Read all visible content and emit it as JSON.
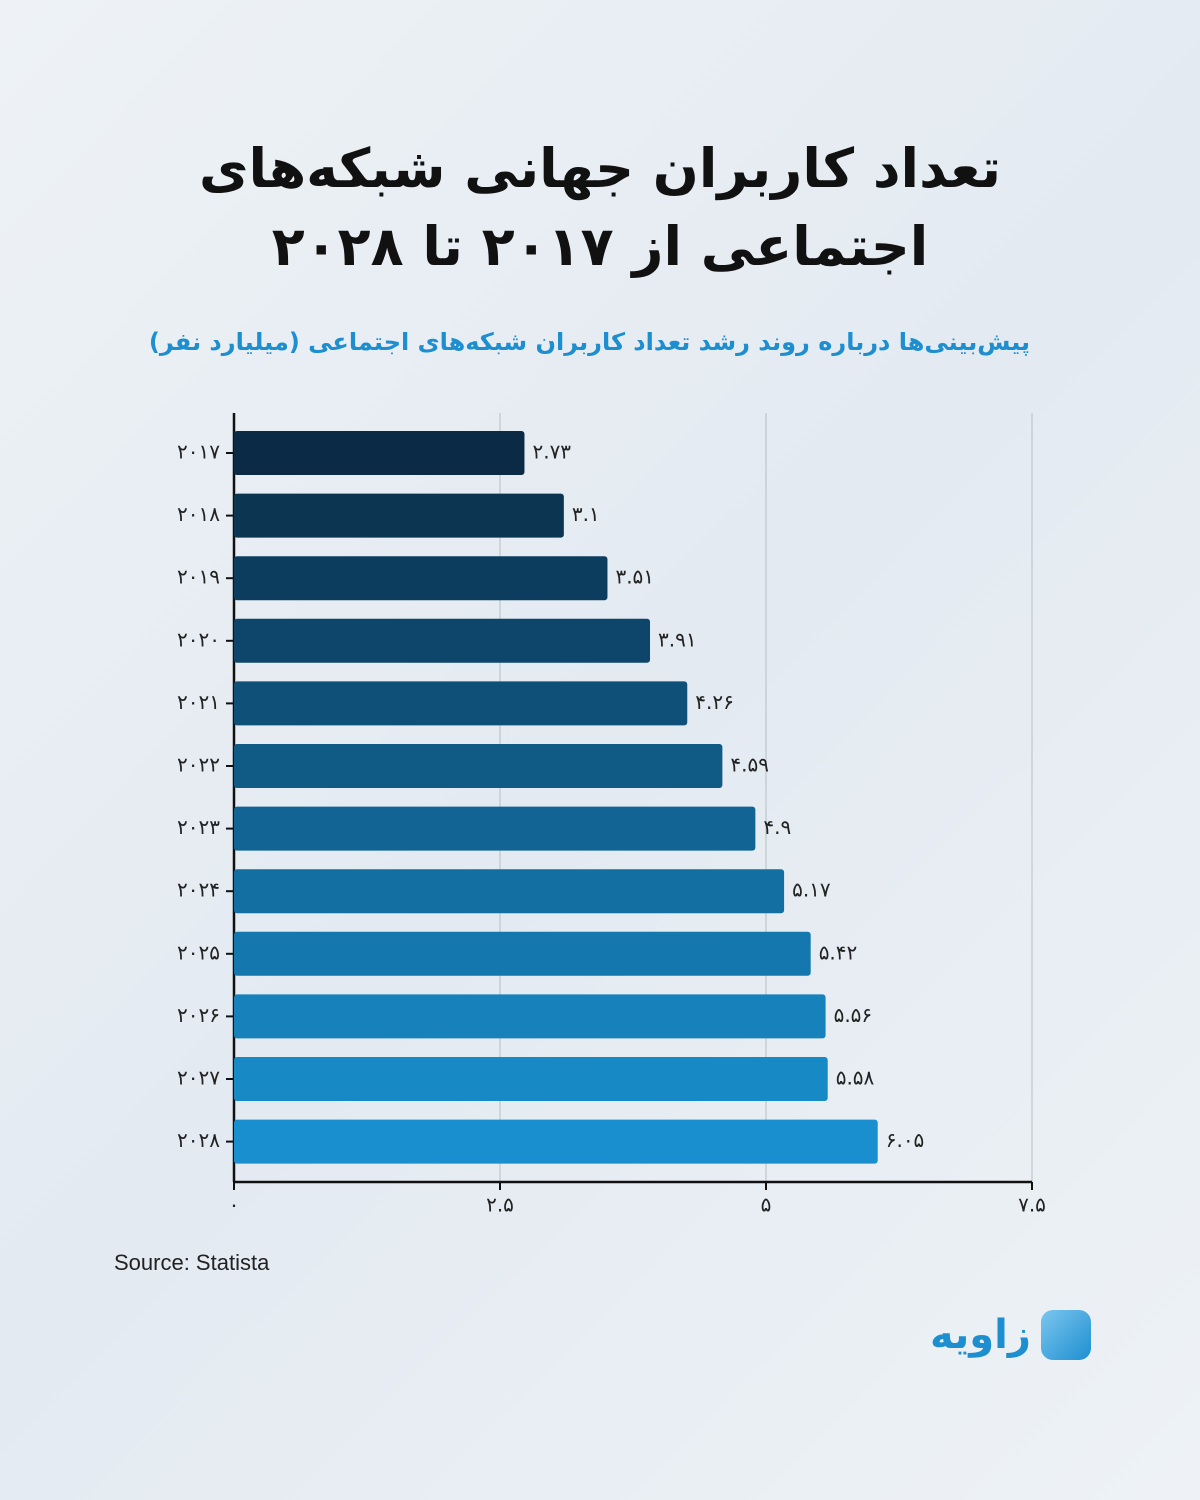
{
  "chart_data": {
    "type": "barh",
    "title": "تعداد کاربران جهانی شبکه‌های اجتماعی از ۲۰۱۷ تا ۲۰۲۸",
    "subtitle": "پیش‌بینی‌ها درباره روند رشد تعداد کاربران شبکه‌های اجتماعی (میلیارد نفر)",
    "categories": [
      "۲۰۱۷",
      "۲۰۱۸",
      "۲۰۱۹",
      "۲۰۲۰",
      "۲۰۲۱",
      "۲۰۲۲",
      "۲۰۲۳",
      "۲۰۲۴",
      "۲۰۲۵",
      "۲۰۲۶",
      "۲۰۲۷",
      "۲۰۲۸"
    ],
    "values": [
      2.73,
      3.1,
      3.51,
      3.91,
      4.26,
      4.59,
      4.9,
      5.17,
      5.42,
      5.56,
      5.58,
      6.05
    ],
    "value_labels": [
      "۲.۷۳",
      "۳.۱",
      "۳.۵۱",
      "۳.۹۱",
      "۴.۲۶",
      "۴.۵۹",
      "۴.۹",
      "۵.۱۷",
      "۵.۴۲",
      "۵.۵۶",
      "۵.۵۸",
      "۶.۰۵"
    ],
    "colors": [
      "#0b2a45",
      "#0c3552",
      "#0d3d5e",
      "#0e466b",
      "#0f5078",
      "#105a86",
      "#116493",
      "#136ea1",
      "#1478ae",
      "#1681bb",
      "#1789c5",
      "#198fd0"
    ],
    "xlim": [
      0,
      7.5
    ],
    "xticks": [
      {
        "value": 0,
        "label": "۰"
      },
      {
        "value": 2.5,
        "label": "۲.۵"
      },
      {
        "value": 5,
        "label": "۵"
      },
      {
        "value": 7.5,
        "label": "۷.۵"
      }
    ],
    "grid": true,
    "source": "Source: Statista",
    "logo": "زاویه"
  }
}
